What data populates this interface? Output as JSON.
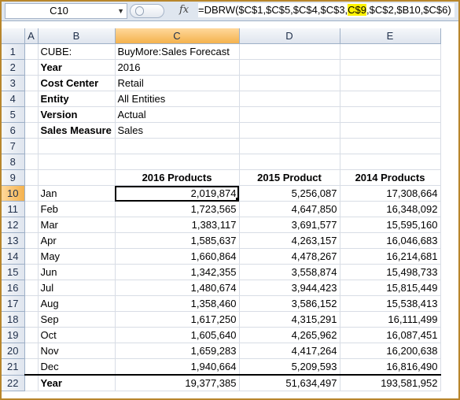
{
  "formula_bar": {
    "name_box": "C10",
    "fx_label": "fx",
    "formula_pre": "=DBRW($C$1,$C$5,$C$4,$C$3,",
    "formula_hl": "C$9",
    "formula_post": ",$C$2,$B10,$C$6)"
  },
  "columns": [
    "A",
    "B",
    "C",
    "D",
    "E"
  ],
  "rows": [
    {
      "n": "1",
      "b": "CUBE:",
      "c": "BuyMore:Sales Forecast",
      "d": "",
      "e": "",
      "bold": false
    },
    {
      "n": "2",
      "b": "Year",
      "c": "2016",
      "d": "",
      "e": "",
      "bold": true
    },
    {
      "n": "3",
      "b": "Cost Center",
      "c": "Retail",
      "d": "",
      "e": "",
      "bold": true
    },
    {
      "n": "4",
      "b": "Entity",
      "c": "All Entities",
      "d": "",
      "e": "",
      "bold": true
    },
    {
      "n": "5",
      "b": "Version",
      "c": "Actual",
      "d": "",
      "e": "",
      "bold": true
    },
    {
      "n": "6",
      "b": "Sales Measure",
      "c": "Sales",
      "d": "",
      "e": "",
      "bold": true
    },
    {
      "n": "7",
      "b": "",
      "c": "",
      "d": "",
      "e": "",
      "bold": false
    },
    {
      "n": "8",
      "b": "",
      "c": "",
      "d": "",
      "e": "",
      "bold": false
    },
    {
      "n": "9",
      "b": "",
      "c": "2016 Products",
      "d": "2015 Product",
      "e": "2014 Products",
      "bold": false,
      "header": true
    },
    {
      "n": "10",
      "b": "Jan",
      "c": "2,019,874",
      "d": "5,256,087",
      "e": "17,308,664",
      "data": true
    },
    {
      "n": "11",
      "b": "Feb",
      "c": "1,723,565",
      "d": "4,647,850",
      "e": "16,348,092",
      "data": true
    },
    {
      "n": "12",
      "b": "Mar",
      "c": "1,383,117",
      "d": "3,691,577",
      "e": "15,595,160",
      "data": true
    },
    {
      "n": "13",
      "b": "Apr",
      "c": "1,585,637",
      "d": "4,263,157",
      "e": "16,046,683",
      "data": true
    },
    {
      "n": "14",
      "b": "May",
      "c": "1,660,864",
      "d": "4,478,267",
      "e": "16,214,681",
      "data": true
    },
    {
      "n": "15",
      "b": "Jun",
      "c": "1,342,355",
      "d": "3,558,874",
      "e": "15,498,733",
      "data": true
    },
    {
      "n": "16",
      "b": "Jul",
      "c": "1,480,674",
      "d": "3,944,423",
      "e": "15,815,449",
      "data": true
    },
    {
      "n": "17",
      "b": "Aug",
      "c": "1,358,460",
      "d": "3,586,152",
      "e": "15,538,413",
      "data": true
    },
    {
      "n": "18",
      "b": "Sep",
      "c": "1,617,250",
      "d": "4,315,291",
      "e": "16,111,499",
      "data": true
    },
    {
      "n": "19",
      "b": "Oct",
      "c": "1,605,640",
      "d": "4,265,962",
      "e": "16,087,451",
      "data": true
    },
    {
      "n": "20",
      "b": "Nov",
      "c": "1,659,283",
      "d": "4,417,264",
      "e": "16,200,638",
      "data": true
    },
    {
      "n": "21",
      "b": "Dec",
      "c": "1,940,664",
      "d": "5,209,593",
      "e": "16,816,490",
      "data": true
    },
    {
      "n": "22",
      "b": "Year",
      "c": "19,377,385",
      "d": "51,634,497",
      "e": "193,581,952",
      "data": true,
      "total": true
    }
  ],
  "selection": {
    "row": "10",
    "col": "C"
  }
}
